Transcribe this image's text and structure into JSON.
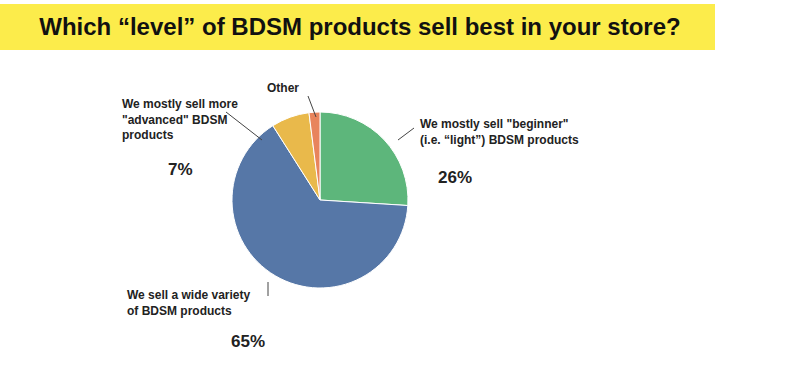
{
  "chart_data": {
    "type": "pie",
    "title": "Which “level” of BDSM products sell best in your store?",
    "categories": [
      "We mostly sell \"beginner\"\n(i.e. “light”) BDSM products",
      "We sell a wide variety\nof BDSM products",
      "We mostly sell more\n\"advanced\" BDSM\nproducts",
      "Other"
    ],
    "values": [
      26,
      65,
      7,
      2
    ],
    "value_labels": [
      "26%",
      "65%",
      "7%",
      null
    ],
    "colors": [
      "#5db67b",
      "#5677a7",
      "#e9b94b",
      "#e8845c"
    ],
    "data_labels": true
  }
}
